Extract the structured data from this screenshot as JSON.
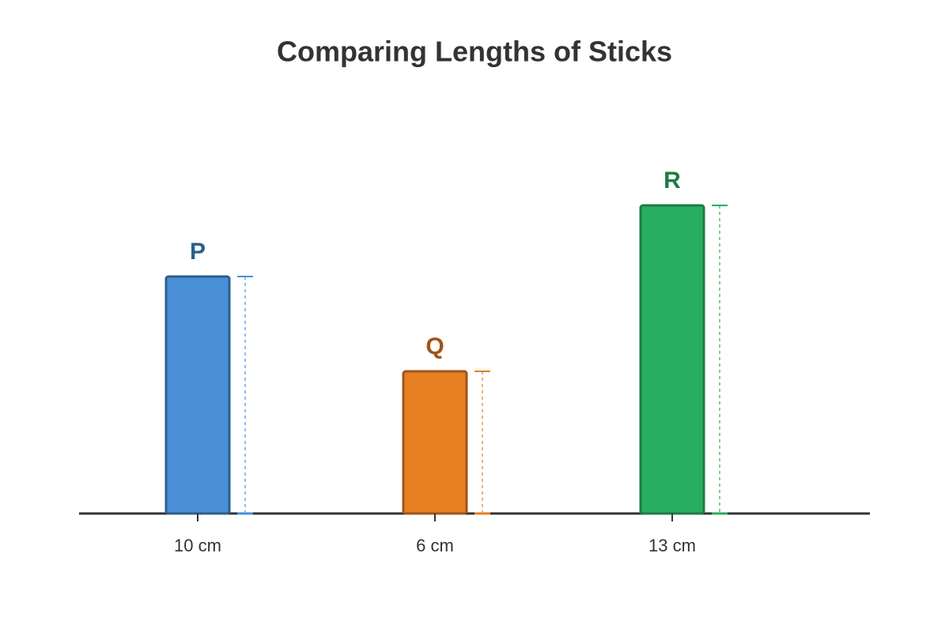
{
  "chart_data": {
    "type": "bar",
    "title": "Comparing Lengths of Sticks",
    "categories": [
      "P",
      "Q",
      "R"
    ],
    "values": [
      10,
      6,
      13
    ],
    "value_labels": [
      "10 cm",
      "6 cm",
      "13 cm"
    ],
    "colors": [
      "#4a90d9",
      "#e67e22",
      "#27ae60"
    ],
    "edge_colors": [
      "#2c5f8a",
      "#a0541a",
      "#1e7a45"
    ]
  }
}
